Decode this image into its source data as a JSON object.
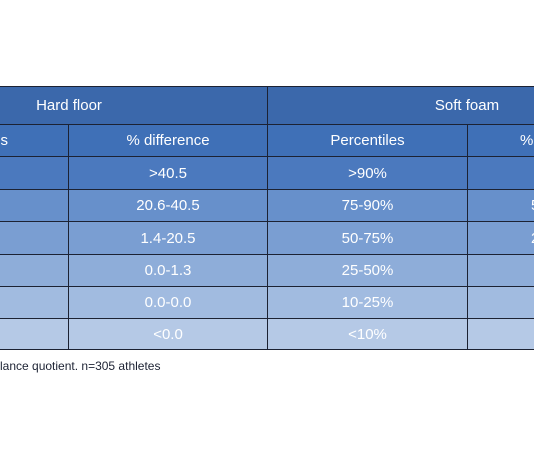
{
  "table": {
    "group_headers": [
      "Hard floor",
      "Soft foam"
    ],
    "column_headers": [
      "s",
      "% difference",
      "Percentiles",
      "%"
    ],
    "rows": [
      {
        "hard_floor_diff": ">40.5",
        "soft_foam_percentile": ">90%"
      },
      {
        "hard_floor_diff": "20.6-40.5",
        "soft_foam_percentile": "75-90%",
        "soft_foam_diff": "5"
      },
      {
        "hard_floor_diff": "1.4-20.5",
        "soft_foam_percentile": "50-75%",
        "soft_foam_diff": "2"
      },
      {
        "hard_floor_diff": "0.0-1.3",
        "soft_foam_percentile": "25-50%"
      },
      {
        "hard_floor_diff": "0.0-0.0",
        "soft_foam_percentile": "10-25%"
      },
      {
        "hard_floor_diff": "<0.0",
        "soft_foam_percentile": "<10%"
      }
    ],
    "footnote": "lance quotient. n=305 athletes"
  }
}
